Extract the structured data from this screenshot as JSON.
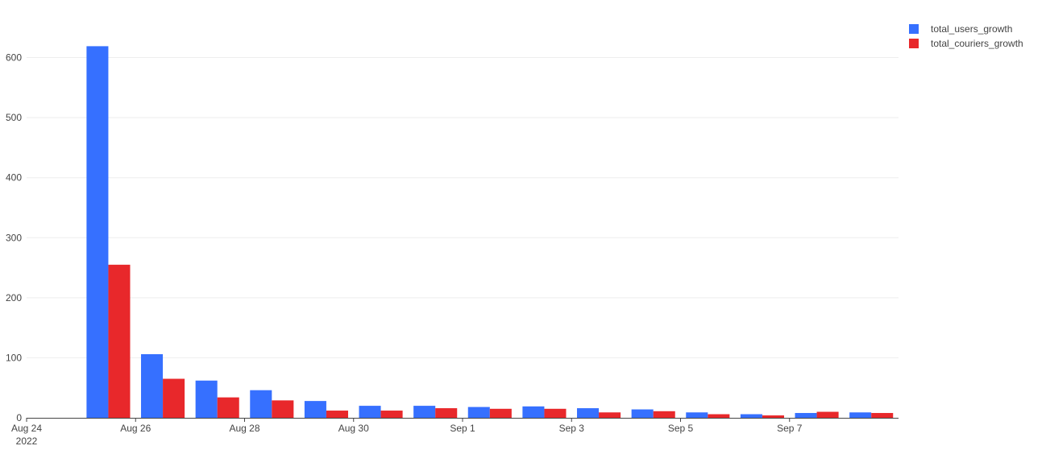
{
  "chart_data": {
    "type": "bar",
    "barmode": "group",
    "x": [
      "2022-08-24",
      "2022-08-25",
      "2022-08-26",
      "2022-08-27",
      "2022-08-28",
      "2022-08-29",
      "2022-08-30",
      "2022-08-31",
      "2022-09-01",
      "2022-09-02",
      "2022-09-03",
      "2022-09-04",
      "2022-09-05",
      "2022-09-06",
      "2022-09-07",
      "2022-09-08"
    ],
    "series": [
      {
        "name": "total_users_growth",
        "color": "#3670ff",
        "values": [
          0,
          619,
          106,
          62,
          46,
          28,
          20,
          20,
          18,
          19,
          16,
          14,
          9,
          6,
          8,
          9
        ]
      },
      {
        "name": "total_couriers_growth",
        "color": "#e8282b",
        "values": [
          0,
          255,
          65,
          34,
          29,
          12,
          12,
          16,
          15,
          15,
          9,
          11,
          6,
          4,
          10,
          8
        ]
      }
    ],
    "title": "",
    "xlabel": "",
    "ylabel": "",
    "ylim": [
      0,
      645
    ],
    "yticks": [
      0,
      100,
      200,
      300,
      400,
      500,
      600
    ],
    "xticks": [
      {
        "x": "2022-08-24",
        "label": "Aug 24",
        "sublabel": "2022"
      },
      {
        "x": "2022-08-26",
        "label": "Aug 26"
      },
      {
        "x": "2022-08-28",
        "label": "Aug 28"
      },
      {
        "x": "2022-08-30",
        "label": "Aug 30"
      },
      {
        "x": "2022-09-01",
        "label": "Sep 1"
      },
      {
        "x": "2022-09-03",
        "label": "Sep 3"
      },
      {
        "x": "2022-09-05",
        "label": "Sep 5"
      },
      {
        "x": "2022-09-07",
        "label": "Sep 7"
      }
    ],
    "grid": true,
    "legend_position": "top-right"
  }
}
